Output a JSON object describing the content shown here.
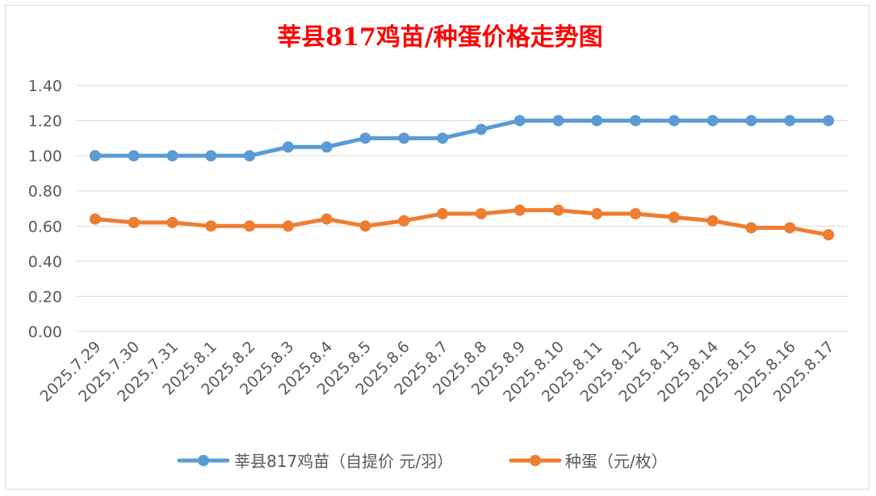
{
  "chart_data": {
    "type": "line",
    "title": "莘县817鸡苗/种蛋价格走势图",
    "categories": [
      "2025.7.29",
      "2025.7.30",
      "2025.7.31",
      "2025.8.1",
      "2025.8.2",
      "2025.8.3",
      "2025.8.4",
      "2025.8.5",
      "2025.8.6",
      "2025.8.7",
      "2025.8.8",
      "2025.8.9",
      "2025.8.10",
      "2025.8.11",
      "2025.8.12",
      "2025.8.13",
      "2025.8.14",
      "2025.8.15",
      "2025.8.16",
      "2025.8.17"
    ],
    "yticks": [
      "0.00",
      "0.20",
      "0.40",
      "0.60",
      "0.80",
      "1.00",
      "1.20",
      "1.40"
    ],
    "ylim": [
      0,
      1.4
    ],
    "grid": true,
    "legend_position": "bottom",
    "series": [
      {
        "name": "莘县817鸡苗（自提价 元/羽）",
        "color": "#5b9bd5",
        "values": [
          1.0,
          1.0,
          1.0,
          1.0,
          1.0,
          1.05,
          1.05,
          1.1,
          1.1,
          1.1,
          1.15,
          1.2,
          1.2,
          1.2,
          1.2,
          1.2,
          1.2,
          1.2,
          1.2,
          1.2
        ]
      },
      {
        "name": "种蛋（元/枚）",
        "color": "#ed7d31",
        "values": [
          0.64,
          0.62,
          0.62,
          0.6,
          0.6,
          0.6,
          0.64,
          0.6,
          0.63,
          0.67,
          0.67,
          0.69,
          0.69,
          0.67,
          0.67,
          0.65,
          0.63,
          0.59,
          0.59,
          0.55
        ]
      }
    ]
  }
}
